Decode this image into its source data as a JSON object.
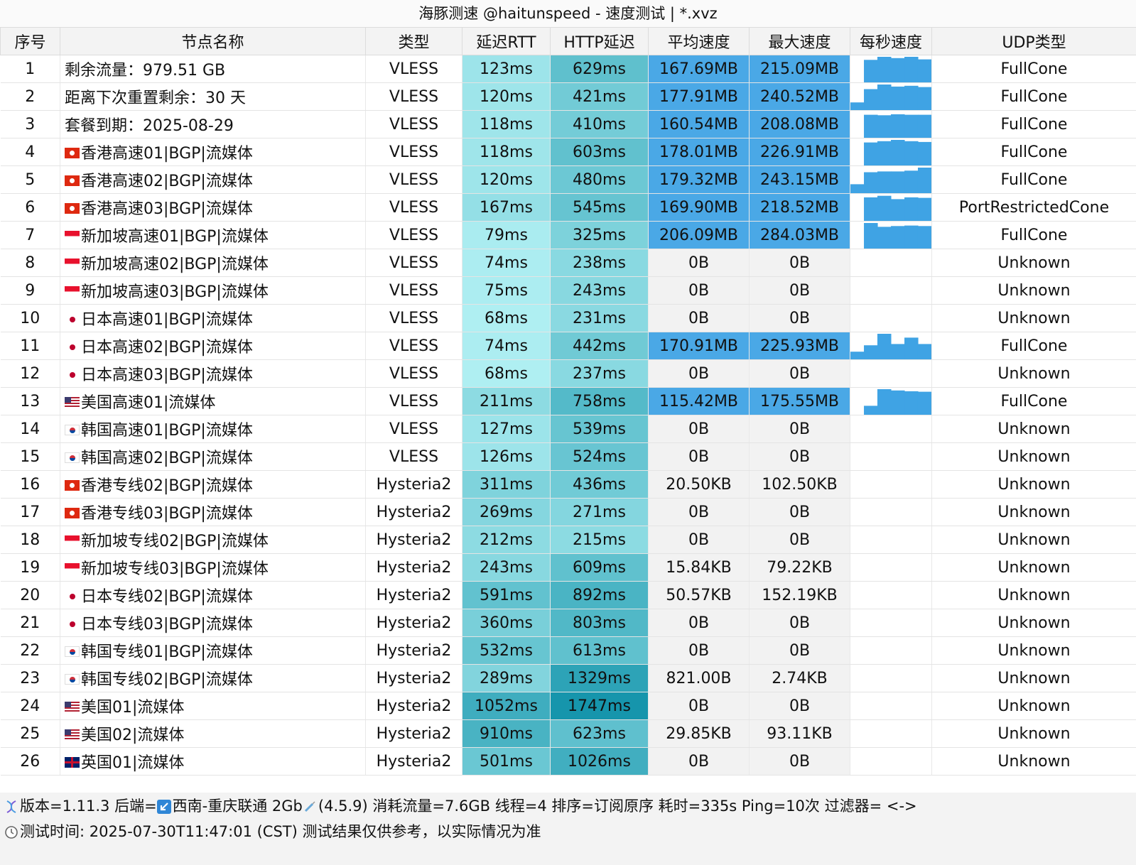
{
  "window": {
    "title": "海豚测速 @haitunspeed - 速度测试 | *.xvz"
  },
  "columns": [
    "序号",
    "节点名称",
    "类型",
    "延迟RTT",
    "HTTP延迟",
    "平均速度",
    "最大速度",
    "每秒速度",
    "UDP类型"
  ],
  "rows": [
    {
      "idx": "1",
      "flag": "",
      "name": "剩余流量：979.51 GB",
      "type": "VLESS",
      "rtt": "123ms",
      "http": "629ms",
      "avg": "167.69MB",
      "max": "215.09MB",
      "udp": "FullCone",
      "rtt_v": 123,
      "http_v": 629,
      "spark": [
        0.0,
        0.88,
        1.0,
        0.95,
        1.0,
        0.9
      ]
    },
    {
      "idx": "2",
      "flag": "",
      "name": "距离下次重置剩余：30 天",
      "type": "VLESS",
      "rtt": "120ms",
      "http": "421ms",
      "avg": "177.91MB",
      "max": "240.52MB",
      "udp": "FullCone",
      "rtt_v": 120,
      "http_v": 421,
      "spark": [
        0.3,
        0.82,
        1.0,
        0.92,
        0.95,
        0.9
      ]
    },
    {
      "idx": "3",
      "flag": "",
      "name": "套餐到期：2025-08-29",
      "type": "VLESS",
      "rtt": "118ms",
      "http": "410ms",
      "avg": "160.54MB",
      "max": "208.08MB",
      "udp": "FullCone",
      "rtt_v": 118,
      "http_v": 410,
      "spark": [
        0.0,
        0.9,
        0.88,
        0.92,
        0.9,
        0.9
      ]
    },
    {
      "idx": "4",
      "flag": "hk",
      "name": "香港高速01|BGP|流媒体",
      "type": "VLESS",
      "rtt": "118ms",
      "http": "603ms",
      "avg": "178.01MB",
      "max": "226.91MB",
      "udp": "FullCone",
      "rtt_v": 118,
      "http_v": 603,
      "spark": [
        0.0,
        0.9,
        0.95,
        1.0,
        0.95,
        0.92
      ]
    },
    {
      "idx": "5",
      "flag": "hk",
      "name": "香港高速02|BGP|流媒体",
      "type": "VLESS",
      "rtt": "120ms",
      "http": "480ms",
      "avg": "179.32MB",
      "max": "243.15MB",
      "udp": "FullCone",
      "rtt_v": 120,
      "http_v": 480,
      "spark": [
        0.35,
        0.82,
        0.85,
        0.85,
        0.88,
        1.0
      ]
    },
    {
      "idx": "6",
      "flag": "hk",
      "name": "香港高速03|BGP|流媒体",
      "type": "VLESS",
      "rtt": "167ms",
      "http": "545ms",
      "avg": "169.90MB",
      "max": "218.52MB",
      "udp": "PortRestrictedCone",
      "rtt_v": 167,
      "http_v": 545,
      "spark": [
        0.0,
        0.92,
        0.98,
        0.85,
        0.92,
        0.9
      ]
    },
    {
      "idx": "7",
      "flag": "sg",
      "name": "新加坡高速01|BGP|流媒体",
      "type": "VLESS",
      "rtt": "79ms",
      "http": "325ms",
      "avg": "206.09MB",
      "max": "284.03MB",
      "udp": "FullCone",
      "rtt_v": 79,
      "http_v": 325,
      "spark": [
        0.0,
        1.0,
        0.85,
        0.88,
        0.9,
        0.88
      ]
    },
    {
      "idx": "8",
      "flag": "sg",
      "name": "新加坡高速02|BGP|流媒体",
      "type": "VLESS",
      "rtt": "74ms",
      "http": "238ms",
      "avg": "0B",
      "max": "0B",
      "udp": "Unknown",
      "rtt_v": 74,
      "http_v": 238,
      "spark": []
    },
    {
      "idx": "9",
      "flag": "sg",
      "name": "新加坡高速03|BGP|流媒体",
      "type": "VLESS",
      "rtt": "75ms",
      "http": "243ms",
      "avg": "0B",
      "max": "0B",
      "udp": "Unknown",
      "rtt_v": 75,
      "http_v": 243,
      "spark": []
    },
    {
      "idx": "10",
      "flag": "jp",
      "name": "日本高速01|BGP|流媒体",
      "type": "VLESS",
      "rtt": "68ms",
      "http": "231ms",
      "avg": "0B",
      "max": "0B",
      "udp": "Unknown",
      "rtt_v": 68,
      "http_v": 231,
      "spark": []
    },
    {
      "idx": "11",
      "flag": "jp",
      "name": "日本高速02|BGP|流媒体",
      "type": "VLESS",
      "rtt": "74ms",
      "http": "442ms",
      "avg": "170.91MB",
      "max": "225.93MB",
      "udp": "FullCone",
      "rtt_v": 74,
      "http_v": 442,
      "spark": [
        0.3,
        0.55,
        1.0,
        0.6,
        0.85,
        0.6
      ]
    },
    {
      "idx": "12",
      "flag": "jp",
      "name": "日本高速03|BGP|流媒体",
      "type": "VLESS",
      "rtt": "68ms",
      "http": "237ms",
      "avg": "0B",
      "max": "0B",
      "udp": "Unknown",
      "rtt_v": 68,
      "http_v": 237,
      "spark": []
    },
    {
      "idx": "13",
      "flag": "us",
      "name": "美国高速01|流媒体",
      "type": "VLESS",
      "rtt": "211ms",
      "http": "758ms",
      "avg": "115.42MB",
      "max": "175.55MB",
      "udp": "FullCone",
      "rtt_v": 211,
      "http_v": 758,
      "spark": [
        0.0,
        0.35,
        1.0,
        0.95,
        0.92,
        0.9
      ]
    },
    {
      "idx": "14",
      "flag": "kr",
      "name": "韩国高速01|BGP|流媒体",
      "type": "VLESS",
      "rtt": "127ms",
      "http": "539ms",
      "avg": "0B",
      "max": "0B",
      "udp": "Unknown",
      "rtt_v": 127,
      "http_v": 539,
      "spark": []
    },
    {
      "idx": "15",
      "flag": "kr",
      "name": "韩国高速02|BGP|流媒体",
      "type": "VLESS",
      "rtt": "126ms",
      "http": "524ms",
      "avg": "0B",
      "max": "0B",
      "udp": "Unknown",
      "rtt_v": 126,
      "http_v": 524,
      "spark": []
    },
    {
      "idx": "16",
      "flag": "hk",
      "name": "香港专线02|BGP|流媒体",
      "type": "Hysteria2",
      "rtt": "311ms",
      "http": "436ms",
      "avg": "20.50KB",
      "max": "102.50KB",
      "udp": "Unknown",
      "rtt_v": 311,
      "http_v": 436,
      "spark": []
    },
    {
      "idx": "17",
      "flag": "hk",
      "name": "香港专线03|BGP|流媒体",
      "type": "Hysteria2",
      "rtt": "269ms",
      "http": "271ms",
      "avg": "0B",
      "max": "0B",
      "udp": "Unknown",
      "rtt_v": 269,
      "http_v": 271,
      "spark": []
    },
    {
      "idx": "18",
      "flag": "sg",
      "name": "新加坡专线02|BGP|流媒体",
      "type": "Hysteria2",
      "rtt": "212ms",
      "http": "215ms",
      "avg": "0B",
      "max": "0B",
      "udp": "Unknown",
      "rtt_v": 212,
      "http_v": 215,
      "spark": []
    },
    {
      "idx": "19",
      "flag": "sg",
      "name": "新加坡专线03|BGP|流媒体",
      "type": "Hysteria2",
      "rtt": "243ms",
      "http": "609ms",
      "avg": "15.84KB",
      "max": "79.22KB",
      "udp": "Unknown",
      "rtt_v": 243,
      "http_v": 609,
      "spark": []
    },
    {
      "idx": "20",
      "flag": "jp",
      "name": "日本专线02|BGP|流媒体",
      "type": "Hysteria2",
      "rtt": "591ms",
      "http": "892ms",
      "avg": "50.57KB",
      "max": "152.19KB",
      "udp": "Unknown",
      "rtt_v": 591,
      "http_v": 892,
      "spark": []
    },
    {
      "idx": "21",
      "flag": "jp",
      "name": "日本专线03|BGP|流媒体",
      "type": "Hysteria2",
      "rtt": "360ms",
      "http": "803ms",
      "avg": "0B",
      "max": "0B",
      "udp": "Unknown",
      "rtt_v": 360,
      "http_v": 803,
      "spark": []
    },
    {
      "idx": "22",
      "flag": "kr",
      "name": "韩国专线01|BGP|流媒体",
      "type": "Hysteria2",
      "rtt": "532ms",
      "http": "613ms",
      "avg": "0B",
      "max": "0B",
      "udp": "Unknown",
      "rtt_v": 532,
      "http_v": 613,
      "spark": []
    },
    {
      "idx": "23",
      "flag": "kr",
      "name": "韩国专线02|BGP|流媒体",
      "type": "Hysteria2",
      "rtt": "289ms",
      "http": "1329ms",
      "avg": "821.00B",
      "max": "2.74KB",
      "udp": "Unknown",
      "rtt_v": 289,
      "http_v": 1329,
      "spark": []
    },
    {
      "idx": "24",
      "flag": "us",
      "name": "美国01|流媒体",
      "type": "Hysteria2",
      "rtt": "1052ms",
      "http": "1747ms",
      "avg": "0B",
      "max": "0B",
      "udp": "Unknown",
      "rtt_v": 1052,
      "http_v": 1747,
      "spark": []
    },
    {
      "idx": "25",
      "flag": "us",
      "name": "美国02|流媒体",
      "type": "Hysteria2",
      "rtt": "910ms",
      "http": "623ms",
      "avg": "29.85KB",
      "max": "93.11KB",
      "udp": "Unknown",
      "rtt_v": 910,
      "http_v": 623,
      "spark": []
    },
    {
      "idx": "26",
      "flag": "gb",
      "name": "英国01|流媒体",
      "type": "Hysteria2",
      "rtt": "501ms",
      "http": "1026ms",
      "avg": "0B",
      "max": "0B",
      "udp": "Unknown",
      "rtt_v": 501,
      "http_v": 1026,
      "spark": []
    }
  ],
  "status": {
    "line1": "版本=1.11.3  后端=",
    "line1b": "西南-重庆联通 2Gb",
    "line1c": "(4.5.9) 消耗流量=7.6GB  线程=4  排序=订阅原序  耗时=335s  Ping=10次  过滤器= <->",
    "line2": "测试时间: 2025-07-30T11:47:01 (CST)  测试结果仅供参考，以实际情况为准"
  },
  "colors": {
    "speed_fill": "#4aa8e6",
    "speed_empty": "#f2f2f2",
    "spark_fill": "#3fa3e4",
    "latency_light": "#b8f4f6",
    "latency_dark": "#1595ac"
  },
  "icons": [
    "dna-icon",
    "arrow-down-left-icon",
    "syringe-icon",
    "clock-icon"
  ]
}
